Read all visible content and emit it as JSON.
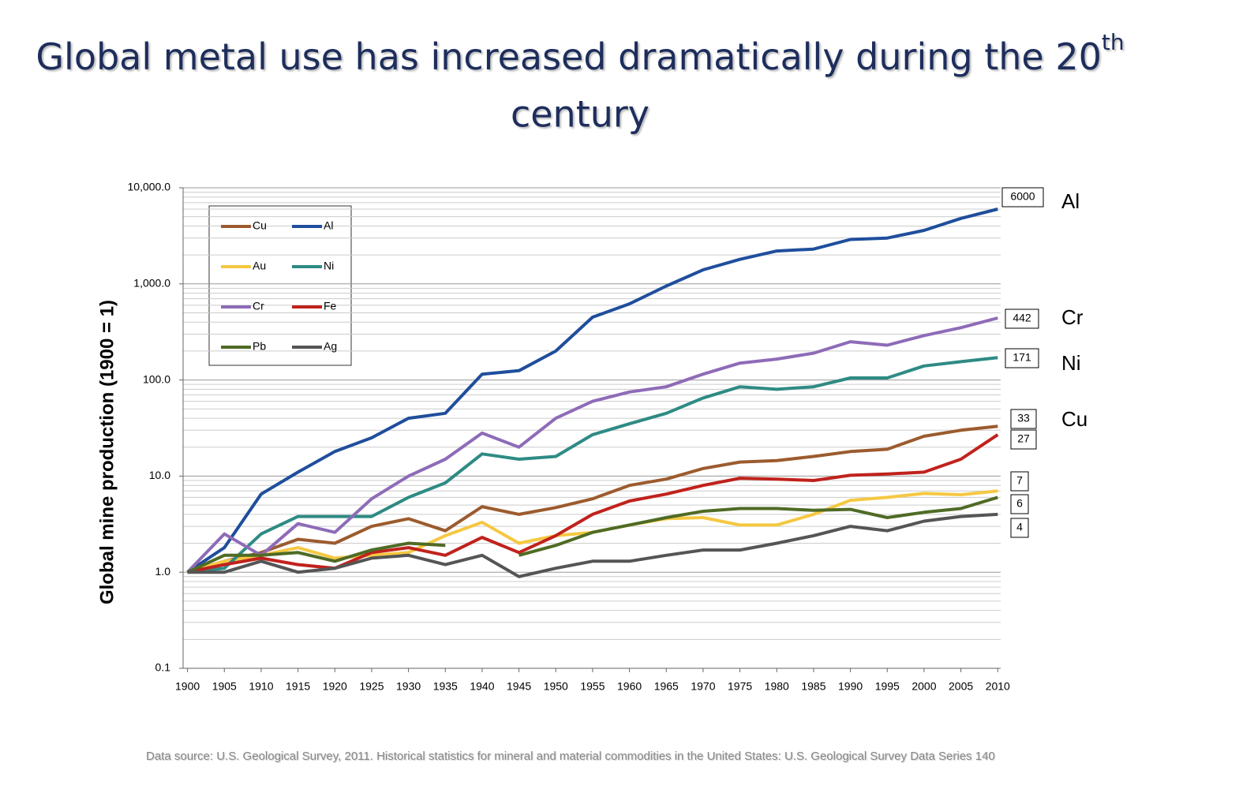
{
  "chart_data": {
    "type": "line",
    "title": "Global metal use has increased dramatically during the 20",
    "title_superscript": "th",
    "title_line2": "century",
    "y_label": "Global mine production (1900 = 1)",
    "source": "Data source: U.S. Geological Survey, 2011. Historical statistics for mineral and material commodities in the United States: U.S. Geological Survey Data Series 140",
    "log_scale": true,
    "grid": true,
    "legend": "top-left",
    "x": [
      1900,
      1905,
      1910,
      1915,
      1920,
      1925,
      1930,
      1935,
      1940,
      1945,
      1950,
      1955,
      1960,
      1965,
      1970,
      1975,
      1980,
      1985,
      1990,
      1995,
      2000,
      2005,
      2010
    ],
    "xlim": [
      1899.4,
      2010.4
    ],
    "xticks": [
      1900,
      1905,
      1910,
      1915,
      1920,
      1925,
      1930,
      1935,
      1940,
      1945,
      1950,
      1955,
      1960,
      1965,
      1970,
      1975,
      1980,
      1985,
      1990,
      1995,
      2000,
      2005,
      2010
    ],
    "ylim": [
      0.1,
      10000
    ],
    "yticks": [
      {
        "value": 0.1,
        "label": "0.1"
      },
      {
        "value": 1,
        "label": "1.0"
      },
      {
        "value": 10,
        "label": "10.0"
      },
      {
        "value": 100,
        "label": "100.0"
      },
      {
        "value": 1000,
        "label": "1,000.0"
      },
      {
        "value": 10000,
        "label": "10,000.0"
      }
    ],
    "end_names": [
      "Al",
      "Cr",
      "Ni",
      "Cu"
    ],
    "series": [
      {
        "name": "Cu",
        "color": "#9c5b2e",
        "values": [
          1,
          1.3,
          1.6,
          2.2,
          2.0,
          3.0,
          3.6,
          2.7,
          4.8,
          4.0,
          4.7,
          5.8,
          8.0,
          9.3,
          12,
          14,
          14.5,
          16,
          18,
          19,
          26,
          30,
          33
        ]
      },
      {
        "name": "Al",
        "color": "#1f4e9c",
        "values": [
          1,
          1.8,
          6.5,
          11,
          18,
          25,
          40,
          45,
          115,
          125,
          200,
          450,
          620,
          950,
          1400,
          1800,
          2200,
          2300,
          2900,
          3000,
          3600,
          4800,
          6000
        ]
      },
      {
        "name": "Au",
        "color": "#f5c842",
        "values": [
          1,
          1.3,
          1.5,
          1.8,
          1.4,
          1.5,
          1.6,
          2.4,
          3.3,
          2.0,
          2.4,
          2.6,
          3.1,
          3.6,
          3.7,
          3.1,
          3.1,
          4,
          5.6,
          6,
          6.6,
          6.4,
          7
        ]
      },
      {
        "name": "Ni",
        "color": "#2e8b84",
        "values": [
          1,
          1.1,
          2.5,
          3.8,
          3.8,
          3.8,
          6,
          8.5,
          17,
          15,
          16,
          27,
          35,
          45,
          65,
          85,
          80,
          85,
          105,
          105,
          140,
          155,
          171
        ]
      },
      {
        "name": "Cr",
        "color": "#8e6bb8",
        "values": [
          1,
          2.5,
          1.5,
          3.2,
          2.6,
          5.8,
          10,
          15,
          28,
          20,
          40,
          60,
          75,
          85,
          115,
          150,
          165,
          190,
          250,
          230,
          290,
          350,
          442
        ]
      },
      {
        "name": "Fe",
        "color": "#c0221c",
        "values": [
          1,
          1.2,
          1.4,
          1.2,
          1.1,
          1.6,
          1.8,
          1.5,
          2.3,
          1.6,
          2.4,
          4.0,
          5.5,
          6.5,
          8,
          9.5,
          9.3,
          9,
          10.2,
          10.5,
          11,
          15,
          27
        ]
      },
      {
        "name": "Pb",
        "color": "#4f6b25",
        "values": [
          1,
          1.5,
          1.5,
          1.6,
          1.3,
          1.7,
          2.0,
          1.9,
          null,
          1.5,
          1.9,
          2.6,
          3.1,
          3.7,
          4.3,
          4.6,
          4.6,
          4.4,
          4.5,
          3.7,
          4.2,
          4.6,
          6
        ]
      },
      {
        "name": "Ag",
        "color": "#555555",
        "values": [
          1,
          1.0,
          1.3,
          1.0,
          1.1,
          1.4,
          1.5,
          1.2,
          1.5,
          0.9,
          1.1,
          1.3,
          1.3,
          1.5,
          1.7,
          1.7,
          2.0,
          2.4,
          3.0,
          2.7,
          3.4,
          3.8,
          4
        ]
      }
    ]
  }
}
